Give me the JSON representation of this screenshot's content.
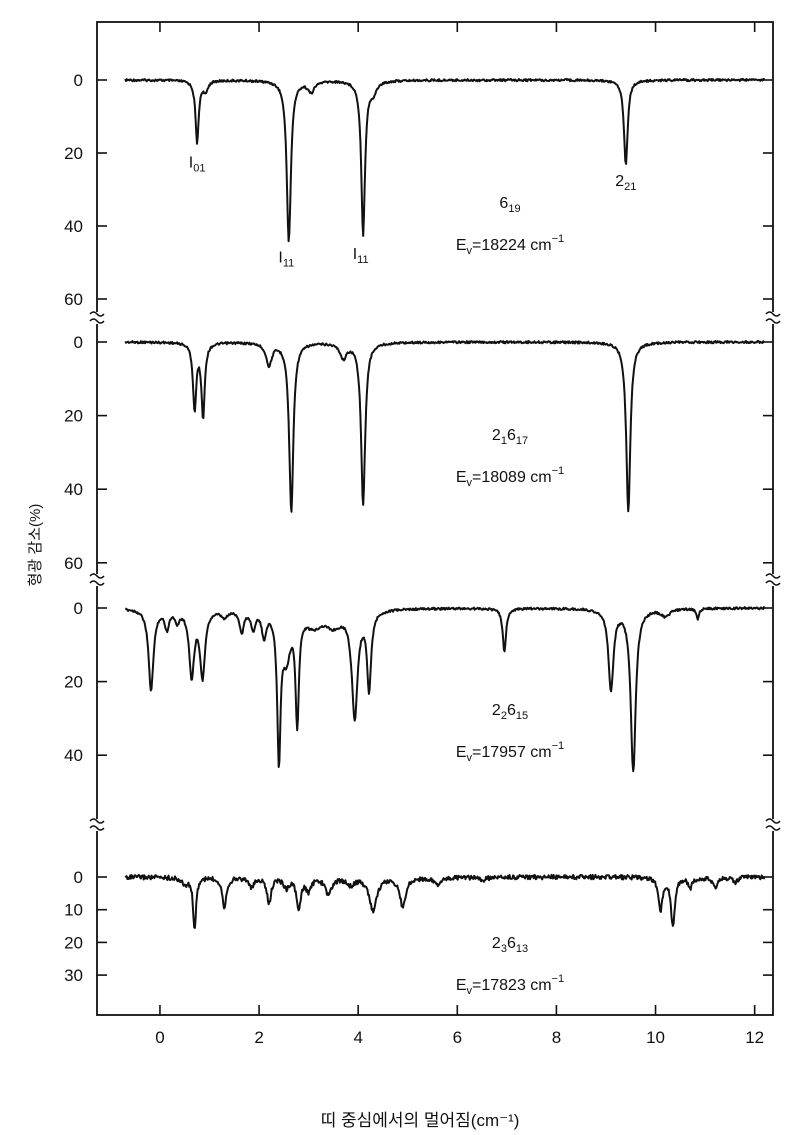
{
  "chart_data": {
    "type": "line",
    "xlabel": "띠 중심에서의 멀어짐(cm⁻¹)",
    "ylabel": "형광 감소(%)",
    "xlim": [
      -1.27,
      12.37
    ],
    "xticks": [
      0,
      2,
      4,
      6,
      8,
      10,
      12
    ],
    "x_tick_labels": [
      "0",
      "2",
      "4",
      "6",
      "8",
      "10",
      "12"
    ],
    "grid": false,
    "panels": [
      {
        "name": "6_19",
        "band_label": {
          "main": "6",
          "sub": "19"
        },
        "energy_label": {
          "e": "E",
          "esub": "v",
          "value": "=18224 cm",
          "sup": "−1"
        },
        "ylim": [
          -16,
          65
        ],
        "yticks": [
          0,
          20,
          40,
          60
        ],
        "y_tick_labels": [
          "0",
          "20",
          "40",
          "60"
        ],
        "x_range": [
          -0.7,
          12.2
        ],
        "peaks": [
          [
            0.75,
            17,
            0.04
          ],
          [
            0.92,
            3,
            0.05
          ],
          [
            2.6,
            44,
            0.05
          ],
          [
            3.05,
            3,
            0.08
          ],
          [
            4.1,
            42,
            0.045
          ],
          [
            4.3,
            3,
            0.08
          ],
          [
            9.4,
            23,
            0.045
          ]
        ],
        "peak_labels": [
          {
            "x": 0.75,
            "y": 24,
            "main": "I",
            "sub": "01"
          },
          {
            "x": 2.55,
            "y": 50,
            "main": "I",
            "sub": "11"
          },
          {
            "x": 4.05,
            "y": 49,
            "main": "I",
            "sub": "11"
          },
          {
            "x": 9.4,
            "y": 29,
            "main": "2",
            "sub": "21"
          }
        ]
      },
      {
        "name": "2_1 6_17",
        "band_label": {
          "main": "2",
          "sub": "1",
          "main2": "6",
          "sub2": "17"
        },
        "energy_label": {
          "e": "E",
          "esub": "v",
          "value": "=18089 cm",
          "sup": "−1"
        },
        "ylim": [
          -6,
          65
        ],
        "yticks": [
          0,
          20,
          40,
          60
        ],
        "y_tick_labels": [
          "0",
          "20",
          "40",
          "60"
        ],
        "x_range": [
          -0.7,
          12.2
        ],
        "peaks": [
          [
            0.7,
            18,
            0.04
          ],
          [
            0.87,
            20,
            0.04
          ],
          [
            2.2,
            6,
            0.07
          ],
          [
            2.65,
            46,
            0.05
          ],
          [
            3.7,
            4,
            0.08
          ],
          [
            4.1,
            44,
            0.05
          ],
          [
            9.45,
            46,
            0.05
          ]
        ],
        "peak_labels": []
      },
      {
        "name": "2_2 6_15",
        "band_label": {
          "main": "2",
          "sub": "2",
          "main2": "6",
          "sub2": "15"
        },
        "energy_label": {
          "e": "E",
          "esub": "v",
          "value": "=17957 cm",
          "sup": "−1"
        },
        "ylim": [
          -7,
          59
        ],
        "yticks": [
          0,
          20,
          40
        ],
        "y_tick_labels": [
          "0",
          "20",
          "40"
        ],
        "x_range": [
          -0.7,
          12.2
        ],
        "peaks": [
          [
            -0.18,
            22,
            0.06
          ],
          [
            0.14,
            5,
            0.05
          ],
          [
            0.35,
            3,
            0.05
          ],
          [
            0.64,
            18,
            0.06
          ],
          [
            0.86,
            18,
            0.06
          ],
          [
            1.3,
            2,
            0.08
          ],
          [
            1.65,
            6,
            0.05
          ],
          [
            1.88,
            5,
            0.05
          ],
          [
            2.1,
            7,
            0.05
          ],
          [
            2.4,
            39,
            0.04
          ],
          [
            2.55,
            12,
            0.1
          ],
          [
            2.77,
            29,
            0.04
          ],
          [
            3.1,
            4,
            0.2
          ],
          [
            3.5,
            4,
            0.2
          ],
          [
            3.93,
            29,
            0.07
          ],
          [
            4.22,
            21,
            0.05
          ],
          [
            6.95,
            12,
            0.04
          ],
          [
            9.1,
            22,
            0.06
          ],
          [
            9.55,
            44,
            0.06
          ],
          [
            10.2,
            2,
            0.1
          ],
          [
            10.85,
            3,
            0.03
          ]
        ],
        "peak_labels": []
      },
      {
        "name": "2_3 6_13",
        "band_label": {
          "main": "2",
          "sub": "3",
          "main2": "6",
          "sub2": "13"
        },
        "energy_label": {
          "e": "E",
          "esub": "v",
          "value": "=17823 cm",
          "sup": "−1"
        },
        "ylim": [
          -16,
          42
        ],
        "yticks": [
          0,
          10,
          20,
          30
        ],
        "y_tick_labels": [
          "0",
          "10",
          "20",
          "30"
        ],
        "x_range": [
          -0.7,
          12.2
        ],
        "peaks": [
          [
            0.5,
            2,
            0.08
          ],
          [
            0.7,
            16,
            0.035
          ],
          [
            1.3,
            9,
            0.05
          ],
          [
            1.85,
            3,
            0.06
          ],
          [
            2.2,
            8,
            0.05
          ],
          [
            2.55,
            3,
            0.06
          ],
          [
            2.8,
            10,
            0.05
          ],
          [
            3.0,
            4,
            0.06
          ],
          [
            3.4,
            5,
            0.08
          ],
          [
            3.85,
            2,
            0.1
          ],
          [
            4.3,
            10,
            0.09
          ],
          [
            4.9,
            9,
            0.07
          ],
          [
            5.6,
            2,
            0.1
          ],
          [
            6.5,
            1,
            0.08
          ],
          [
            10.1,
            10,
            0.05
          ],
          [
            10.35,
            15,
            0.045
          ],
          [
            10.7,
            3,
            0.05
          ],
          [
            11.2,
            3,
            0.06
          ],
          [
            11.6,
            1.5,
            0.06
          ]
        ],
        "peak_labels": []
      }
    ]
  }
}
